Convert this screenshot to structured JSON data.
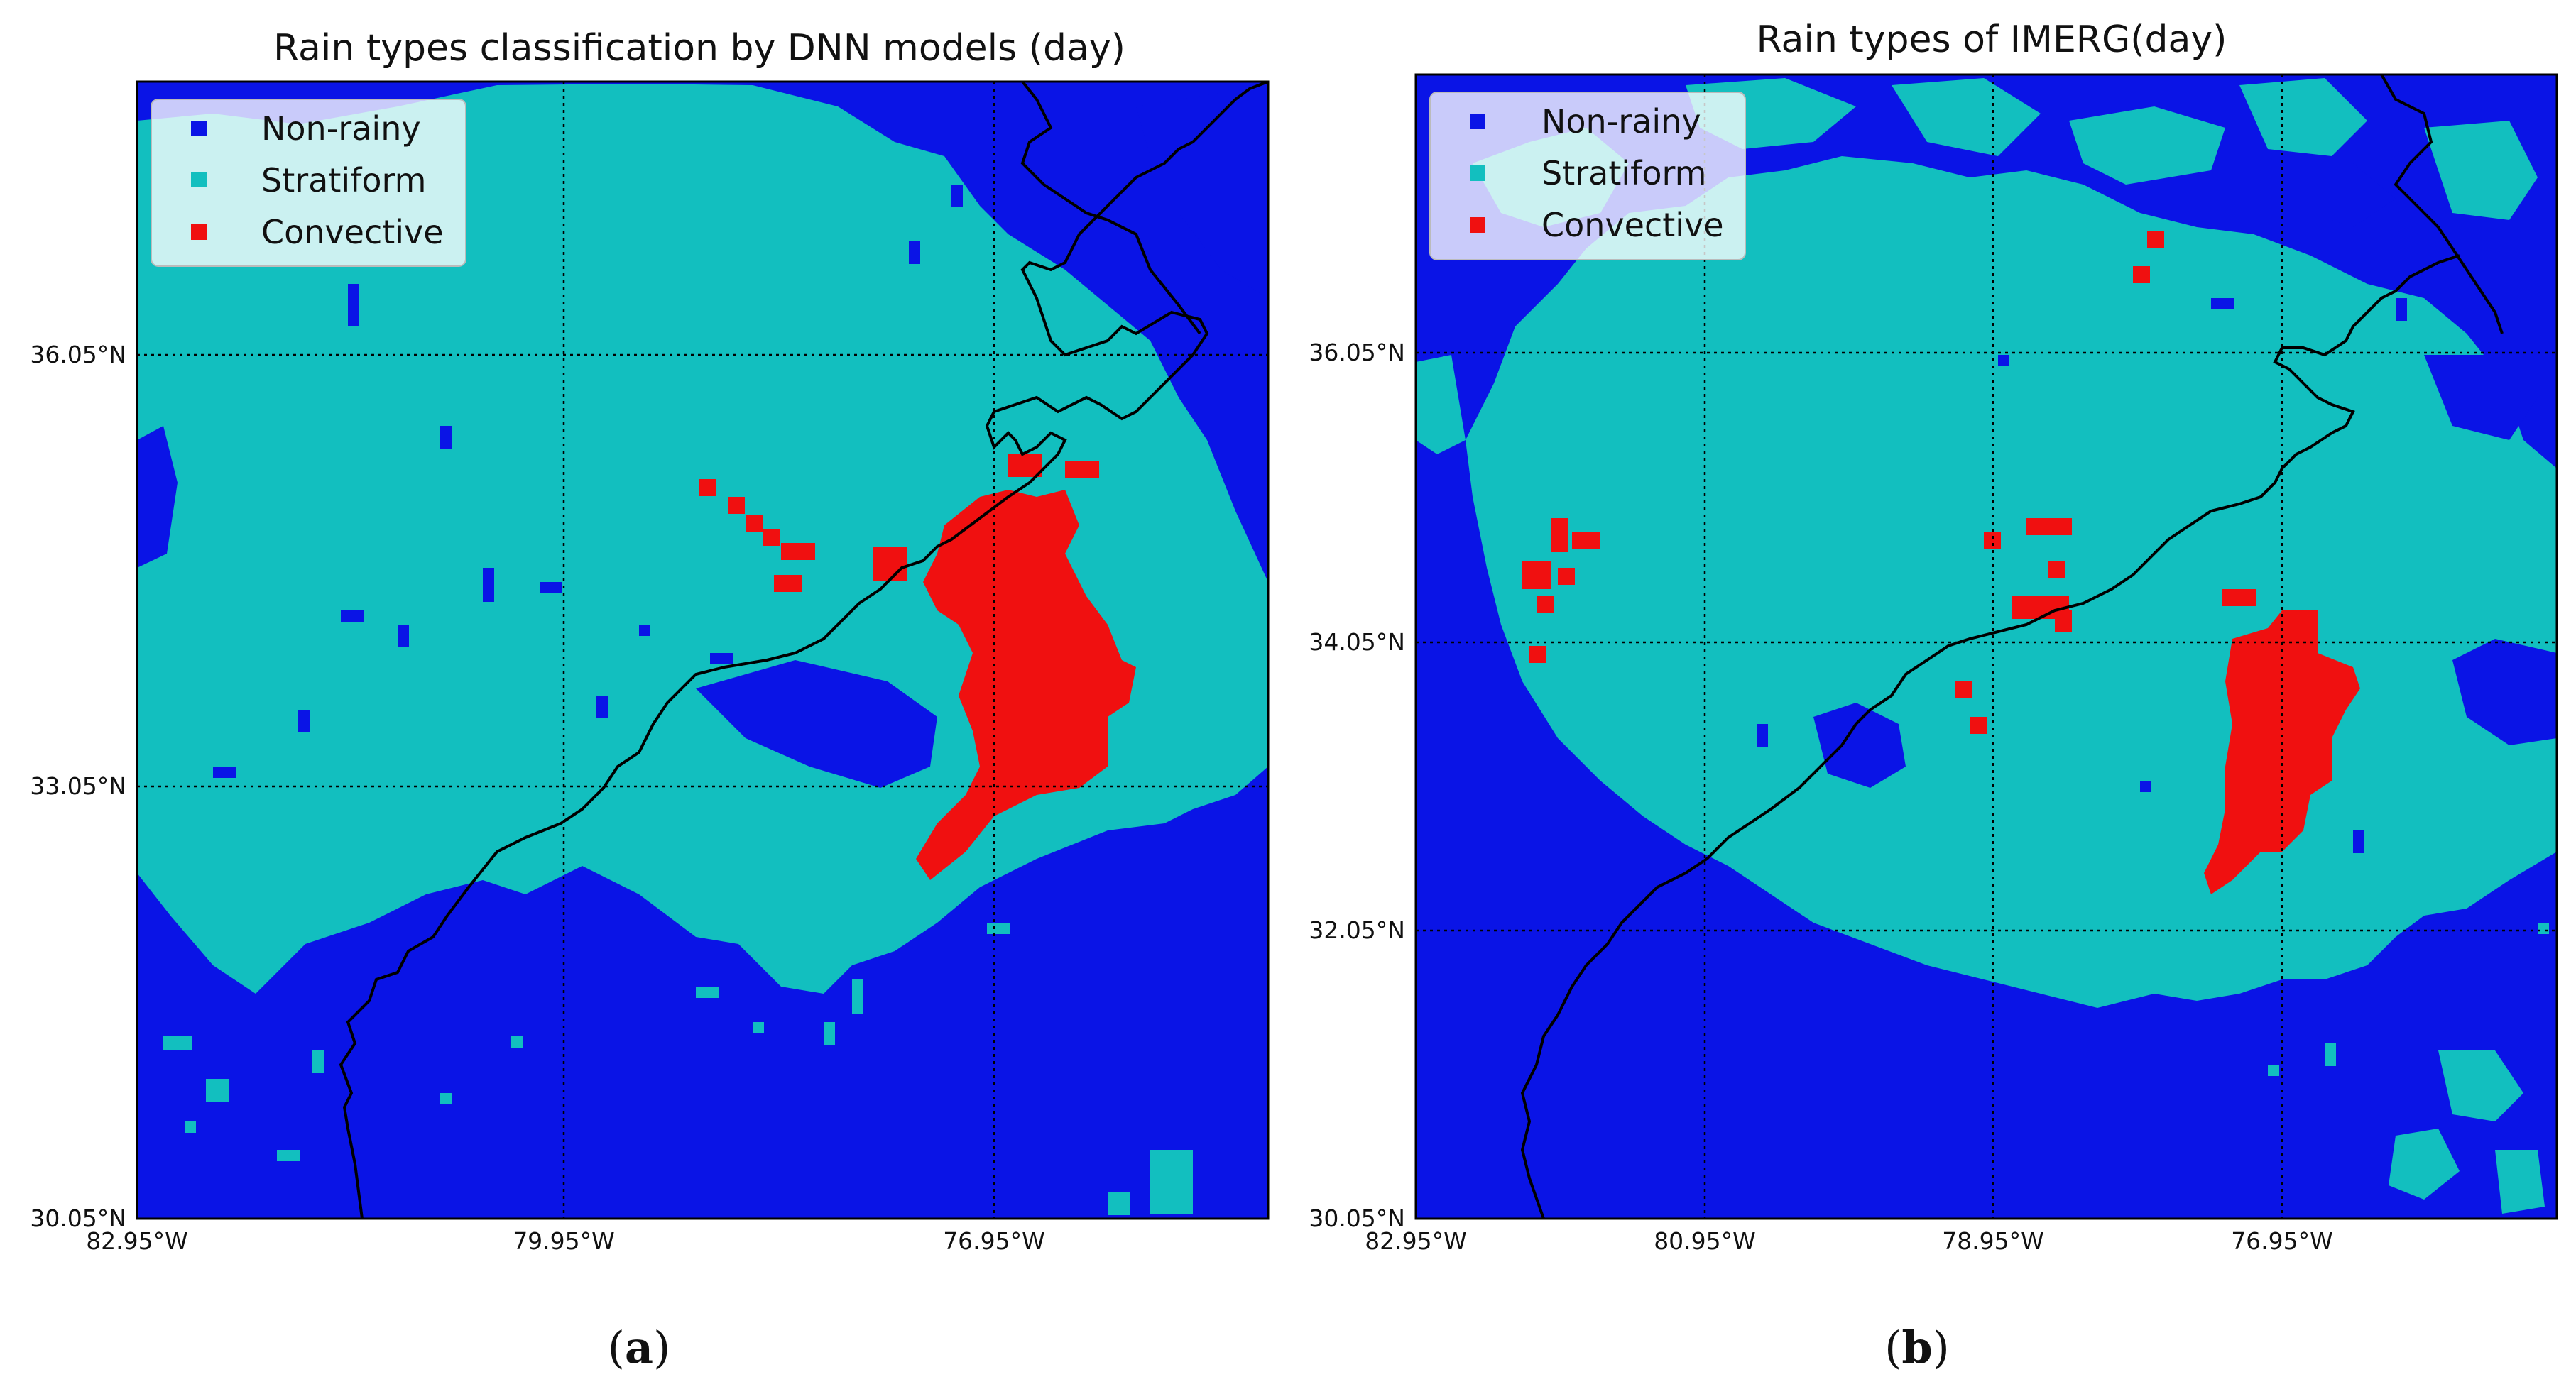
{
  "colors": {
    "non_rainy": "#0a14e6",
    "stratiform": "#12bfbf",
    "convective": "#f01010",
    "coast": "#000000",
    "grid": "#000000"
  },
  "legend": [
    "Non-rainy",
    "Stratiform",
    "Convective"
  ],
  "panels": [
    {
      "id": "a",
      "title": "Rain types classification by DNN models (day)",
      "subfigure_label": {
        "open": "(",
        "letter": "a",
        "close": ")"
      },
      "lat_ticks": [
        "36.05°N",
        "33.05°N",
        "30.05°N"
      ],
      "lon_ticks": [
        "82.95°W",
        "79.95°W",
        "76.95°W"
      ],
      "grid_lat": [
        36.05,
        33.05
      ],
      "grid_lon": [
        -79.95,
        -76.95
      ],
      "extent": {
        "lon_min": -82.95,
        "lon_max": -75.05,
        "lat_min": 30.05,
        "lat_max": 37.95
      }
    },
    {
      "id": "b",
      "title": "Rain types of IMERG(day)",
      "subfigure_label": {
        "open": "(",
        "letter": "b",
        "close": ")"
      },
      "lat_ticks": [
        "36.05°N",
        "34.05°N",
        "32.05°N",
        "30.05°N"
      ],
      "lon_ticks": [
        "82.95°W",
        "80.95°W",
        "78.95°W",
        "76.95°W"
      ],
      "grid_lat": [
        36.05,
        34.05,
        32.05
      ],
      "grid_lon": [
        -80.95,
        -78.95,
        -76.95
      ],
      "extent": {
        "lon_min": -82.95,
        "lon_max": -75.05,
        "lat_min": 30.05,
        "lat_max": 37.95
      }
    }
  ]
}
